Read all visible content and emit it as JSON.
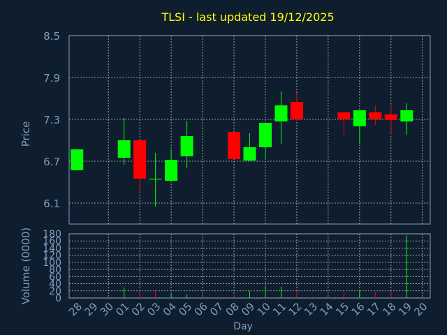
{
  "colors": {
    "background": "#0f1e2f",
    "title": "#ffff00",
    "text": "#7f9fbf",
    "grid": "#c0c0c0",
    "up": "#00ff00",
    "down": "#ff0000"
  },
  "chart_data": [
    {
      "type": "candlestick",
      "title": "TLSI - last updated 19/12/2025",
      "ylabel": "Price",
      "ylim": [
        5.8,
        8.5
      ],
      "yticks": [
        "6.1",
        "6.7",
        "7.3",
        "7.9",
        "8.5"
      ],
      "ytick_values": [
        6.1,
        6.7,
        7.3,
        7.9,
        8.5
      ],
      "grid": true,
      "x": [
        "28",
        "29",
        "30",
        "01",
        "02",
        "03",
        "04",
        "05",
        "06",
        "07",
        "08",
        "09",
        "10",
        "11",
        "12",
        "13",
        "14",
        "15",
        "16",
        "17",
        "18",
        "19",
        "20"
      ],
      "candles": [
        {
          "x": "28",
          "open": 6.57,
          "close": 6.87,
          "high": 6.87,
          "low": 6.57
        },
        {
          "x": "01",
          "open": 6.75,
          "close": 7.0,
          "high": 7.32,
          "low": 6.65
        },
        {
          "x": "02",
          "open": 7.0,
          "close": 6.45,
          "high": 7.0,
          "low": 6.25
        },
        {
          "x": "03",
          "open": 6.45,
          "close": 6.45,
          "high": 6.82,
          "low": 6.05
        },
        {
          "x": "04",
          "open": 6.42,
          "close": 6.72,
          "high": 6.87,
          "low": 6.42
        },
        {
          "x": "05",
          "open": 6.77,
          "close": 7.06,
          "high": 7.28,
          "low": 6.6
        },
        {
          "x": "08",
          "open": 7.12,
          "close": 6.73,
          "high": 7.12,
          "low": 6.73
        },
        {
          "x": "09",
          "open": 6.71,
          "close": 6.9,
          "high": 7.1,
          "low": 6.7
        },
        {
          "x": "10",
          "open": 6.9,
          "close": 7.25,
          "high": 7.25,
          "low": 6.72
        },
        {
          "x": "11",
          "open": 7.27,
          "close": 7.5,
          "high": 7.7,
          "low": 6.95
        },
        {
          "x": "12",
          "open": 7.55,
          "close": 7.3,
          "high": 7.68,
          "low": 7.27
        },
        {
          "x": "15",
          "open": 7.4,
          "close": 7.3,
          "high": 7.4,
          "low": 7.08
        },
        {
          "x": "16",
          "open": 7.2,
          "close": 7.43,
          "high": 7.43,
          "low": 6.95
        },
        {
          "x": "17",
          "open": 7.4,
          "close": 7.3,
          "high": 7.5,
          "low": 7.22
        },
        {
          "x": "18",
          "open": 7.37,
          "close": 7.29,
          "high": 7.52,
          "low": 7.08
        },
        {
          "x": "19",
          "open": 7.27,
          "close": 7.43,
          "high": 7.53,
          "low": 7.08
        }
      ]
    },
    {
      "type": "bar",
      "ylabel": "Volume (0000)",
      "xlabel": "Day",
      "ylim": [
        0,
        180
      ],
      "yticks": [
        "0",
        "20",
        "40",
        "60",
        "80",
        "100",
        "120",
        "140",
        "160",
        "180"
      ],
      "ytick_values": [
        0,
        20,
        40,
        60,
        80,
        100,
        120,
        140,
        160,
        180
      ],
      "grid": true,
      "x": [
        "28",
        "29",
        "30",
        "01",
        "02",
        "03",
        "04",
        "05",
        "06",
        "07",
        "08",
        "09",
        "10",
        "11",
        "12",
        "13",
        "14",
        "15",
        "16",
        "17",
        "18",
        "19",
        "20"
      ],
      "bars": [
        {
          "x": "28",
          "value": 1,
          "direction": "up"
        },
        {
          "x": "01",
          "value": 30,
          "direction": "up"
        },
        {
          "x": "02",
          "value": 20,
          "direction": "down"
        },
        {
          "x": "03",
          "value": 22,
          "direction": "down"
        },
        {
          "x": "04",
          "value": 12,
          "direction": "up"
        },
        {
          "x": "05",
          "value": 10,
          "direction": "up"
        },
        {
          "x": "08",
          "value": 8,
          "direction": "down"
        },
        {
          "x": "09",
          "value": 20,
          "direction": "up"
        },
        {
          "x": "10",
          "value": 33,
          "direction": "up"
        },
        {
          "x": "11",
          "value": 32,
          "direction": "up"
        },
        {
          "x": "12",
          "value": 20,
          "direction": "down"
        },
        {
          "x": "15",
          "value": 18,
          "direction": "down"
        },
        {
          "x": "16",
          "value": 20,
          "direction": "up"
        },
        {
          "x": "17",
          "value": 18,
          "direction": "down"
        },
        {
          "x": "18",
          "value": 18,
          "direction": "down"
        },
        {
          "x": "19",
          "value": 175,
          "direction": "up"
        }
      ]
    }
  ]
}
